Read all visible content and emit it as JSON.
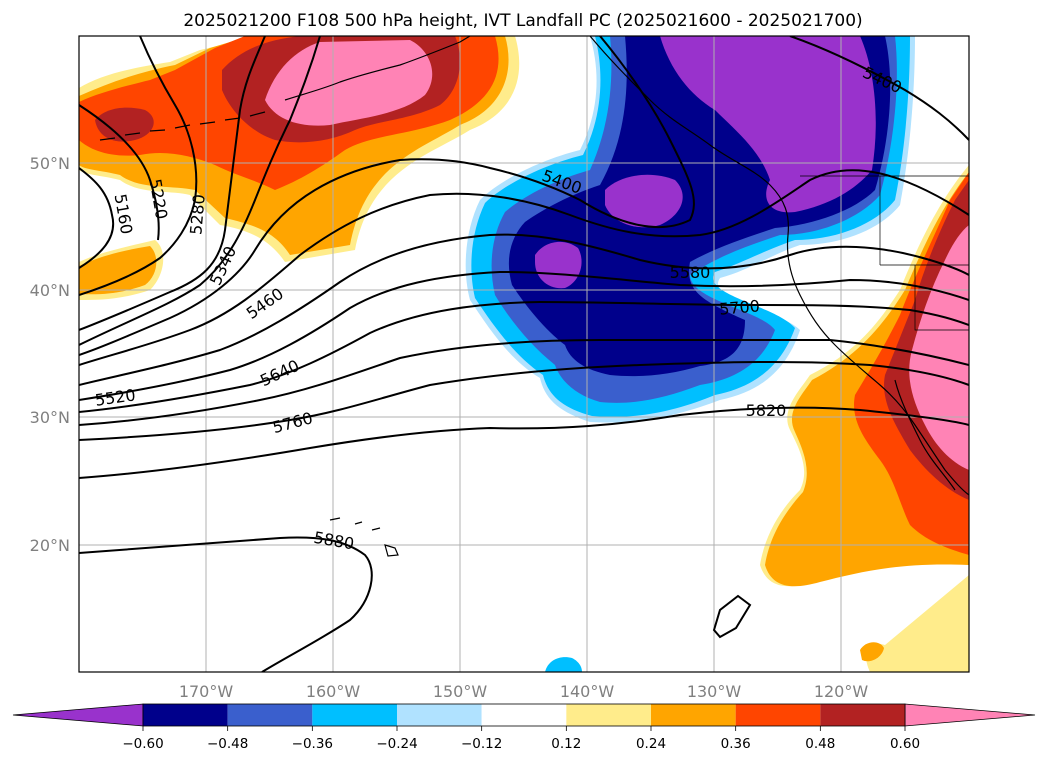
{
  "title": "2025021200 F108 500 hPa height, IVT Landfall PC (2025021600 - 2025021700)",
  "map": {
    "lon_labels": [
      "170°W",
      "160°W",
      "150°W",
      "140°W",
      "130°W",
      "120°W"
    ],
    "lat_labels": [
      "50°N",
      "40°N",
      "30°N",
      "20°N"
    ],
    "lon_range": [
      -180,
      -110
    ],
    "lat_range": [
      10,
      60
    ],
    "projection": "PlateCarree",
    "gridlines": true,
    "colors": {
      "land_outline": "#000000",
      "grid": "#b0b0b0"
    }
  },
  "contours": {
    "field": "500 hPa height",
    "line_color": "#000000",
    "labels": [
      {
        "value": "5160"
      },
      {
        "value": "5220"
      },
      {
        "value": "5280"
      },
      {
        "value": "5340"
      },
      {
        "value": "5400"
      },
      {
        "value": "5400",
        "id": "5400b"
      },
      {
        "value": "5460"
      },
      {
        "value": "5520"
      },
      {
        "value": "5580"
      },
      {
        "value": "5640"
      },
      {
        "value": "5700"
      },
      {
        "value": "5760"
      },
      {
        "value": "5820"
      },
      {
        "value": "5880"
      }
    ]
  },
  "colorbar": {
    "extend": "both",
    "levels": [
      "−0.60",
      "−0.48",
      "−0.36",
      "−0.24",
      "−0.12",
      "0.12",
      "0.24",
      "0.36",
      "0.48",
      "0.60"
    ],
    "colors": [
      "#9932cc",
      "#00008b",
      "#3a5fcd",
      "#00bfff",
      "#b0e2ff",
      "#ffffff",
      "#ffec8b",
      "#ffa500",
      "#ff4500",
      "#b22222",
      "#ff83b5"
    ]
  }
}
